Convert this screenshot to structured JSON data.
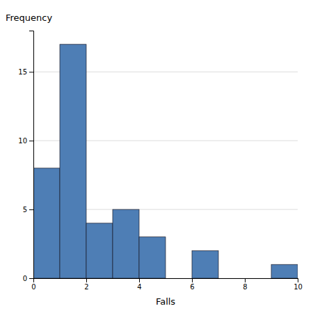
{
  "chart_data": {
    "type": "histogram",
    "x_label": "Falls",
    "y_label": "Frequency",
    "bins": [
      0,
      1,
      2,
      3,
      4,
      5,
      6,
      7,
      8,
      9,
      10
    ],
    "values": [
      8,
      17,
      4,
      5,
      3,
      0,
      2,
      0,
      0,
      1
    ],
    "color": "#4e7eb5",
    "xlim": [
      0,
      10
    ],
    "ylim": [
      0,
      18
    ],
    "xticks": [
      0,
      2,
      4,
      6,
      8,
      10
    ],
    "yticks": [
      0,
      5,
      10,
      15
    ],
    "grid": "y"
  }
}
